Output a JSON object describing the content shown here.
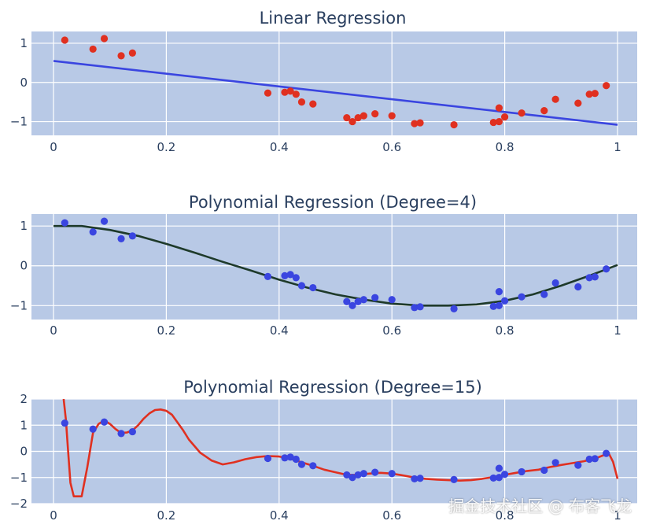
{
  "chart_data": [
    {
      "type": "scatter",
      "title": "Linear Regression",
      "xlim": [
        0,
        1
      ],
      "ylim": [
        -1.35,
        1.3
      ],
      "x_ticks": [
        "0",
        "0.2",
        "0.4",
        "0.6",
        "0.8",
        "1"
      ],
      "y_ticks": [
        "1",
        "0",
        "−1"
      ],
      "point_color": "#e03020",
      "line_color": "#3a45e0",
      "points": {
        "x": [
          0.02,
          0.07,
          0.09,
          0.12,
          0.14,
          0.38,
          0.41,
          0.42,
          0.43,
          0.44,
          0.46,
          0.52,
          0.53,
          0.54,
          0.55,
          0.57,
          0.6,
          0.64,
          0.65,
          0.71,
          0.78,
          0.79,
          0.79,
          0.8,
          0.83,
          0.87,
          0.89,
          0.93,
          0.95,
          0.96,
          0.98
        ],
        "y": [
          1.08,
          0.85,
          1.12,
          0.68,
          0.75,
          -0.27,
          -0.25,
          -0.22,
          -0.3,
          -0.5,
          -0.55,
          -0.9,
          -1.0,
          -0.9,
          -0.85,
          -0.8,
          -0.85,
          -1.05,
          -1.03,
          -1.08,
          -1.02,
          -0.65,
          -1.0,
          -0.88,
          -0.78,
          -0.72,
          -0.43,
          -0.53,
          -0.3,
          -0.28,
          -0.08
        ]
      },
      "line": {
        "x": [
          0,
          1
        ],
        "y": [
          0.55,
          -1.08
        ]
      }
    },
    {
      "type": "scatter",
      "title": "Polynomial Regression (Degree=4)",
      "xlim": [
        0,
        1
      ],
      "ylim": [
        -1.35,
        1.3
      ],
      "x_ticks": [
        "0",
        "0.2",
        "0.4",
        "0.6",
        "0.8",
        "1"
      ],
      "y_ticks": [
        "1",
        "0",
        "−1"
      ],
      "point_color": "#3a45e0",
      "line_color": "#1e3a2a",
      "points": {
        "x": [
          0.02,
          0.07,
          0.09,
          0.12,
          0.14,
          0.38,
          0.41,
          0.42,
          0.43,
          0.44,
          0.46,
          0.52,
          0.53,
          0.54,
          0.55,
          0.57,
          0.6,
          0.64,
          0.65,
          0.71,
          0.78,
          0.79,
          0.79,
          0.8,
          0.83,
          0.87,
          0.89,
          0.93,
          0.95,
          0.96,
          0.98
        ],
        "y": [
          1.08,
          0.85,
          1.12,
          0.68,
          0.75,
          -0.27,
          -0.25,
          -0.22,
          -0.3,
          -0.5,
          -0.55,
          -0.9,
          -1.0,
          -0.9,
          -0.85,
          -0.8,
          -0.85,
          -1.05,
          -1.03,
          -1.08,
          -1.02,
          -0.65,
          -1.0,
          -0.88,
          -0.78,
          -0.72,
          -0.43,
          -0.53,
          -0.3,
          -0.28,
          -0.08
        ]
      },
      "line": {
        "x": [
          0,
          0.05,
          0.1,
          0.15,
          0.2,
          0.25,
          0.3,
          0.35,
          0.4,
          0.45,
          0.5,
          0.55,
          0.6,
          0.65,
          0.7,
          0.75,
          0.8,
          0.85,
          0.9,
          0.95,
          1.0
        ],
        "y": [
          1.0,
          1.0,
          0.9,
          0.75,
          0.55,
          0.33,
          0.1,
          -0.12,
          -0.35,
          -0.55,
          -0.72,
          -0.85,
          -0.95,
          -1.0,
          -1.0,
          -0.97,
          -0.88,
          -0.72,
          -0.5,
          -0.25,
          0.02
        ]
      }
    },
    {
      "type": "scatter",
      "title": "Polynomial Regression (Degree=15)",
      "xlim": [
        0,
        1
      ],
      "ylim": [
        -2,
        2
      ],
      "x_ticks": [
        "0",
        "0.2",
        "0.4",
        "0.6",
        "0.8",
        "1"
      ],
      "y_ticks": [
        "2",
        "1",
        "0",
        "−1",
        "−2"
      ],
      "point_color": "#3a45e0",
      "line_color": "#e03020",
      "points": {
        "x": [
          0.02,
          0.07,
          0.09,
          0.12,
          0.14,
          0.38,
          0.41,
          0.42,
          0.43,
          0.44,
          0.46,
          0.52,
          0.53,
          0.54,
          0.55,
          0.57,
          0.6,
          0.64,
          0.65,
          0.71,
          0.78,
          0.79,
          0.79,
          0.8,
          0.83,
          0.87,
          0.89,
          0.93,
          0.95,
          0.96,
          0.98
        ],
        "y": [
          1.08,
          0.85,
          1.12,
          0.68,
          0.75,
          -0.27,
          -0.25,
          -0.22,
          -0.3,
          -0.5,
          -0.55,
          -0.9,
          -1.0,
          -0.9,
          -0.85,
          -0.8,
          -0.85,
          -1.05,
          -1.03,
          -1.08,
          -1.02,
          -0.65,
          -1.0,
          -0.88,
          -0.78,
          -0.72,
          -0.43,
          -0.53,
          -0.3,
          -0.28,
          -0.08
        ]
      },
      "line": {
        "x": [
          0.018,
          0.022,
          0.026,
          0.03,
          0.036,
          0.042,
          0.05,
          0.06,
          0.07,
          0.08,
          0.09,
          0.1,
          0.11,
          0.12,
          0.13,
          0.14,
          0.15,
          0.16,
          0.17,
          0.18,
          0.19,
          0.2,
          0.21,
          0.22,
          0.23,
          0.24,
          0.25,
          0.26,
          0.27,
          0.28,
          0.3,
          0.32,
          0.34,
          0.36,
          0.38,
          0.4,
          0.42,
          0.44,
          0.46,
          0.48,
          0.5,
          0.52,
          0.54,
          0.56,
          0.58,
          0.6,
          0.62,
          0.64,
          0.66,
          0.68,
          0.7,
          0.72,
          0.74,
          0.76,
          0.78,
          0.8,
          0.82,
          0.84,
          0.86,
          0.88,
          0.9,
          0.92,
          0.94,
          0.96,
          0.975,
          0.985,
          0.992,
          1.0
        ],
        "y": [
          2.0,
          1.2,
          0.0,
          -1.2,
          -1.72,
          -1.72,
          -1.72,
          -0.6,
          0.7,
          1.05,
          1.18,
          1.05,
          0.85,
          0.7,
          0.72,
          0.8,
          1.0,
          1.25,
          1.45,
          1.58,
          1.6,
          1.55,
          1.4,
          1.1,
          0.8,
          0.45,
          0.2,
          -0.05,
          -0.2,
          -0.35,
          -0.5,
          -0.42,
          -0.3,
          -0.22,
          -0.18,
          -0.2,
          -0.28,
          -0.42,
          -0.55,
          -0.7,
          -0.8,
          -0.9,
          -0.9,
          -0.85,
          -0.82,
          -0.85,
          -0.92,
          -1.0,
          -1.05,
          -1.08,
          -1.1,
          -1.12,
          -1.1,
          -1.05,
          -0.98,
          -0.9,
          -0.82,
          -0.75,
          -0.7,
          -0.6,
          -0.52,
          -0.45,
          -0.38,
          -0.28,
          -0.15,
          -0.1,
          -0.4,
          -1.05
        ]
      }
    }
  ],
  "watermark": "掘金技术社区 @ 布客飞龙"
}
